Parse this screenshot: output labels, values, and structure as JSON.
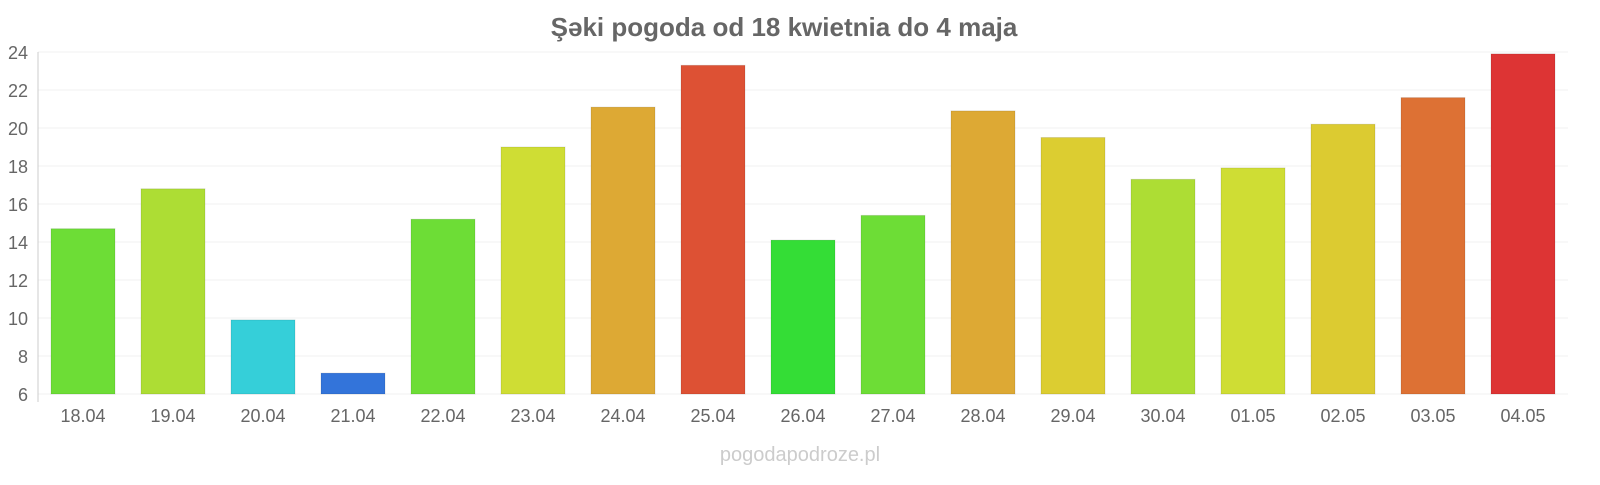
{
  "chart_data": {
    "type": "bar",
    "title": "Şəki pogoda od 18 kwietnia do 4 maja",
    "categories": [
      "18.04",
      "19.04",
      "20.04",
      "21.04",
      "22.04",
      "23.04",
      "24.04",
      "25.04",
      "26.04",
      "27.04",
      "28.04",
      "29.04",
      "30.04",
      "01.05",
      "02.05",
      "03.05",
      "04.05"
    ],
    "values": [
      14.7,
      16.8,
      9.9,
      7.1,
      15.2,
      19.0,
      21.1,
      23.3,
      14.1,
      15.4,
      20.9,
      19.5,
      17.3,
      17.9,
      20.2,
      21.6,
      23.9
    ],
    "colors": [
      "#6ddd36",
      "#addd34",
      "#35cfd9",
      "#3374da",
      "#6ddd36",
      "#cfdd34",
      "#dda934",
      "#dd5134",
      "#34dd36",
      "#6ddd36",
      "#dda934",
      "#dccd31",
      "#addd34",
      "#cfdd34",
      "#dccb31",
      "#dd7134",
      "#dd3434"
    ],
    "ylim": [
      6,
      24
    ],
    "yticks": [
      6,
      8,
      10,
      12,
      14,
      16,
      18,
      20,
      22,
      24
    ],
    "grid": true,
    "xlabel": "",
    "ylabel": ""
  },
  "watermark": "pogodapodroze.pl"
}
